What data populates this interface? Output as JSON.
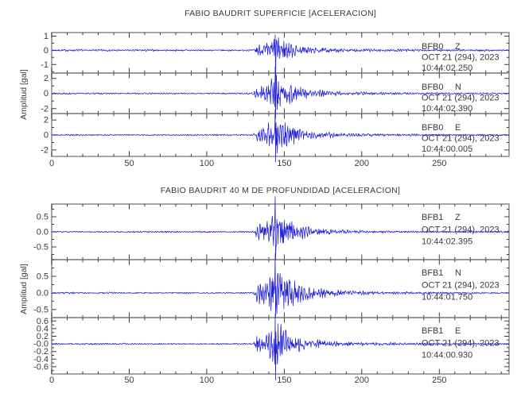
{
  "colors": {
    "trace": "#2020dd",
    "frame": "#909090",
    "tick": "#3c3c3c",
    "text": "#3a3a3a",
    "background": "#ffffff"
  },
  "chart_data": [
    {
      "type": "line",
      "title": "FABIO BAUDRIT SUPERFICIE [ACELERACION]",
      "ylabel": "Amplitud [gal]",
      "xlabel": "",
      "xlim": [
        0,
        295
      ],
      "xticks": {
        "labeled_values": [
          0,
          50,
          100,
          150,
          200,
          250
        ],
        "labels": [
          "0",
          "50",
          "100",
          "150",
          "200",
          "250"
        ],
        "minor_step": 10
      },
      "grid": false,
      "legend": "none",
      "series": [
        {
          "station": "BFB0",
          "component": "Z",
          "date_line": "OCT 21 (294), 2023",
          "time_line": "10:44:02.250",
          "ylim": [
            -1.6,
            1.25
          ],
          "yticks": [
            {
              "value": 1,
              "label": "1"
            },
            {
              "value": 0,
              "label": "0"
            },
            {
              "value": -1,
              "label": "-1"
            }
          ],
          "ytick_minor_step": 0.5,
          "signal": {
            "noise_amp": 0.05,
            "event_start": 130,
            "peak_time": 144.5,
            "peak_amp": 0.75,
            "rise_width": 4,
            "decay_tau": 11,
            "coda_amp_frac": 0.22,
            "coda_tau": 40,
            "spike_up": 1.1,
            "spike_down": -2.35,
            "seed": 7
          }
        },
        {
          "station": "BFB0",
          "component": "N",
          "date_line": "OCT 21 (294), 2023",
          "time_line": "10:44:02.390",
          "ylim": [
            -2.65,
            2.7
          ],
          "yticks": [
            {
              "value": 2,
              "label": "2"
            },
            {
              "value": 0,
              "label": "0"
            },
            {
              "value": -2,
              "label": "-2"
            }
          ],
          "ytick_minor_step": 1,
          "signal": {
            "noise_amp": 0.085,
            "event_start": 130,
            "peak_time": 144.5,
            "peak_amp": 1.8,
            "rise_width": 4,
            "decay_tau": 11,
            "coda_amp_frac": 0.22,
            "coda_tau": 40,
            "spike_up": 3.5,
            "spike_down": -3.3,
            "seed": 13
          }
        },
        {
          "station": "BFB0",
          "component": "E",
          "date_line": "OCT 21 (294), 2023",
          "time_line": "10:44:00.005",
          "ylim": [
            -2.85,
            2.85
          ],
          "yticks": [
            {
              "value": 2,
              "label": "2"
            },
            {
              "value": 0,
              "label": "0"
            },
            {
              "value": -2,
              "label": "-2"
            }
          ],
          "ytick_minor_step": 1,
          "signal": {
            "noise_amp": 0.085,
            "event_start": 130,
            "peak_time": 144.5,
            "peak_amp": 1.9,
            "rise_width": 4,
            "decay_tau": 11,
            "coda_amp_frac": 0.22,
            "coda_tau": 40,
            "spike_up": 3.4,
            "spike_down": -3.6,
            "seed": 21
          }
        }
      ]
    },
    {
      "type": "line",
      "title": "FABIO BAUDRIT 40 M DE PROFUNDIDAD [ACELERACION]",
      "ylabel": "Amplitud [gal]",
      "xlabel": "",
      "xlim": [
        0,
        295
      ],
      "xticks": {
        "labeled_values": [
          0,
          50,
          100,
          150,
          200,
          250
        ],
        "labels": [
          "0",
          "50",
          "100",
          "150",
          "200",
          "250"
        ],
        "minor_step": 10
      },
      "grid": false,
      "legend": "none",
      "series": [
        {
          "station": "BFB1",
          "component": "Z",
          "date_line": "OCT 21 (294), 2023",
          "time_line": "10:44:02.395",
          "ylim": [
            -0.92,
            0.92
          ],
          "yticks": [
            {
              "value": 0.5,
              "label": "0.5"
            },
            {
              "value": 0,
              "label": "0.0"
            },
            {
              "value": -0.5,
              "label": "-0.5"
            }
          ],
          "ytick_minor_step": 0.25,
          "signal": {
            "noise_amp": 0.018,
            "event_start": 130,
            "peak_time": 144.5,
            "peak_amp": 0.55,
            "rise_width": 4,
            "decay_tau": 11,
            "coda_amp_frac": 0.22,
            "coda_tau": 40,
            "spike_up": 1.18,
            "spike_down": -0.9,
            "seed": 31
          }
        },
        {
          "station": "BFB1",
          "component": "N",
          "date_line": "OCT 21 (294), 2023",
          "time_line": "10:44:01.750",
          "ylim": [
            -0.74,
            1.0
          ],
          "yticks": [
            {
              "value": 0.5,
              "label": "0.5"
            },
            {
              "value": 0,
              "label": "0.0"
            },
            {
              "value": -0.5,
              "label": "-0.5"
            }
          ],
          "ytick_minor_step": 0.25,
          "signal": {
            "noise_amp": 0.018,
            "event_start": 130,
            "peak_time": 144.5,
            "peak_amp": 0.62,
            "rise_width": 4,
            "decay_tau": 11,
            "coda_amp_frac": 0.22,
            "coda_tau": 40,
            "spike_up": 1.2,
            "spike_down": -0.72,
            "seed": 43
          }
        },
        {
          "station": "BFB1",
          "component": "E",
          "date_line": "OCT 21 (294), 2023",
          "time_line": "10:44:00.930",
          "ylim": [
            -0.79,
            0.69
          ],
          "yticks": [
            {
              "value": 0.6,
              "label": "0.6"
            },
            {
              "value": 0.4,
              "label": "0.4"
            },
            {
              "value": 0.2,
              "label": "0.2"
            },
            {
              "value": 0,
              "label": "-0.0"
            },
            {
              "value": -0.2,
              "label": "-0.2"
            },
            {
              "value": -0.4,
              "label": "-0.4"
            },
            {
              "value": -0.6,
              "label": "-0.6"
            }
          ],
          "ytick_minor_step": 0.1,
          "signal": {
            "noise_amp": 0.016,
            "event_start": 130,
            "peak_time": 144.5,
            "peak_amp": 0.45,
            "rise_width": 4,
            "decay_tau": 11,
            "coda_amp_frac": 0.22,
            "coda_tau": 40,
            "spike_up": 0.8,
            "spike_down": -0.95,
            "seed": 57
          }
        }
      ]
    }
  ]
}
